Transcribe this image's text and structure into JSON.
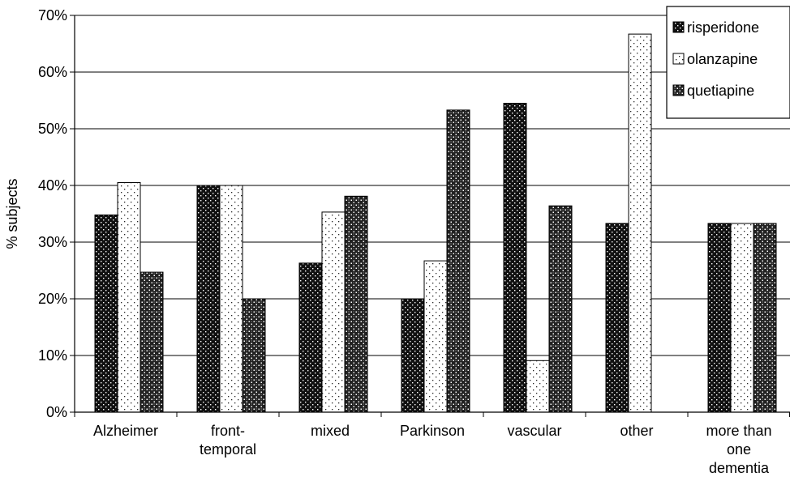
{
  "chart_data": {
    "type": "bar",
    "title": "",
    "xlabel": "",
    "ylabel": "% subjects",
    "ylim": [
      0,
      70
    ],
    "y_ticks": [
      "0%",
      "10%",
      "20%",
      "30%",
      "40%",
      "50%",
      "60%",
      "70%"
    ],
    "grid": true,
    "legend_position": "top-right",
    "categories": [
      [
        "Alzheimer"
      ],
      [
        "front-",
        "temporal"
      ],
      [
        "mixed"
      ],
      [
        "Parkinson"
      ],
      [
        "vascular"
      ],
      [
        "other"
      ],
      [
        "more than",
        "one",
        "dementia"
      ]
    ],
    "series": [
      {
        "name": "risperidone",
        "pattern": "dense-dark",
        "values": [
          34.8,
          40.0,
          26.3,
          20.0,
          54.5,
          33.3,
          33.3
        ]
      },
      {
        "name": "olanzapine",
        "pattern": "sparse-light",
        "values": [
          40.5,
          40.0,
          35.3,
          26.7,
          9.1,
          66.7,
          33.3
        ]
      },
      {
        "name": "quetiapine",
        "pattern": "cross-dark",
        "values": [
          24.7,
          20.0,
          38.1,
          53.3,
          36.4,
          0,
          33.3
        ]
      }
    ]
  }
}
